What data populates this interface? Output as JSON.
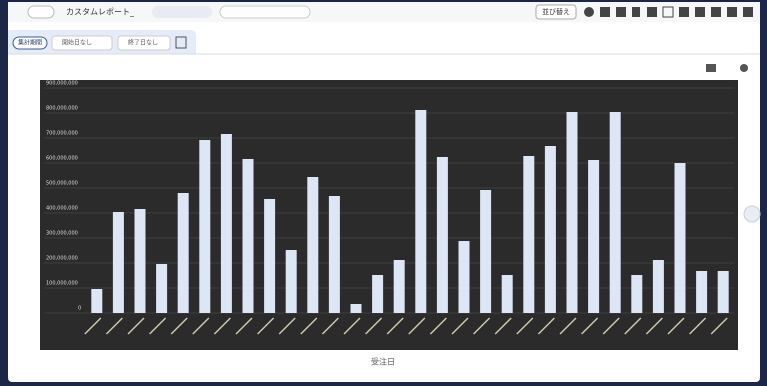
{
  "toolbar": {
    "report_title": "カスタムレポート_",
    "sort_button": "並び替え"
  },
  "filters": {
    "period_label": "集計期間",
    "start": "開始日なし",
    "end": "終了日なし"
  },
  "chart_data": {
    "type": "bar",
    "x_label": "受注日",
    "categories": [
      null,
      null,
      null,
      null,
      null,
      null,
      null,
      null,
      null,
      null,
      null,
      null,
      null,
      null,
      null,
      null,
      null,
      null,
      null,
      null,
      null,
      null,
      null,
      null,
      null,
      null,
      null,
      null,
      null,
      null
    ],
    "values": [
      96000000,
      404000000,
      416000000,
      196000000,
      480000000,
      692000000,
      716000000,
      616000000,
      456000000,
      252000000,
      544000000,
      468000000,
      36000000,
      152000000,
      212000000,
      812000000,
      624000000,
      288000000,
      492000000,
      152000000,
      628000000,
      668000000,
      804000000,
      612000000,
      804000000,
      152000000,
      212000000,
      600000000,
      168000000,
      168000000
    ],
    "color": "#dce6f4",
    "ylim": [
      0,
      900000000
    ],
    "yticks": [
      0,
      {
        "value": 100000000,
        "label": "100,000,000"
      },
      {
        "value": 200000000,
        "label": "200,000,000"
      },
      {
        "value": 300000000,
        "label": "300,000,000"
      },
      {
        "value": 400000000,
        "label": "400,000,000"
      },
      {
        "value": 500000000,
        "label": "500,000,000"
      },
      {
        "value": 600000000,
        "label": "600,000,000"
      },
      {
        "value": 700000000,
        "label": "700,000,000"
      },
      {
        "value": 800000000,
        "label": "800,000,000"
      },
      {
        "value": 900000000,
        "label": "900,000,000"
      }
    ],
    "grid": true
  }
}
